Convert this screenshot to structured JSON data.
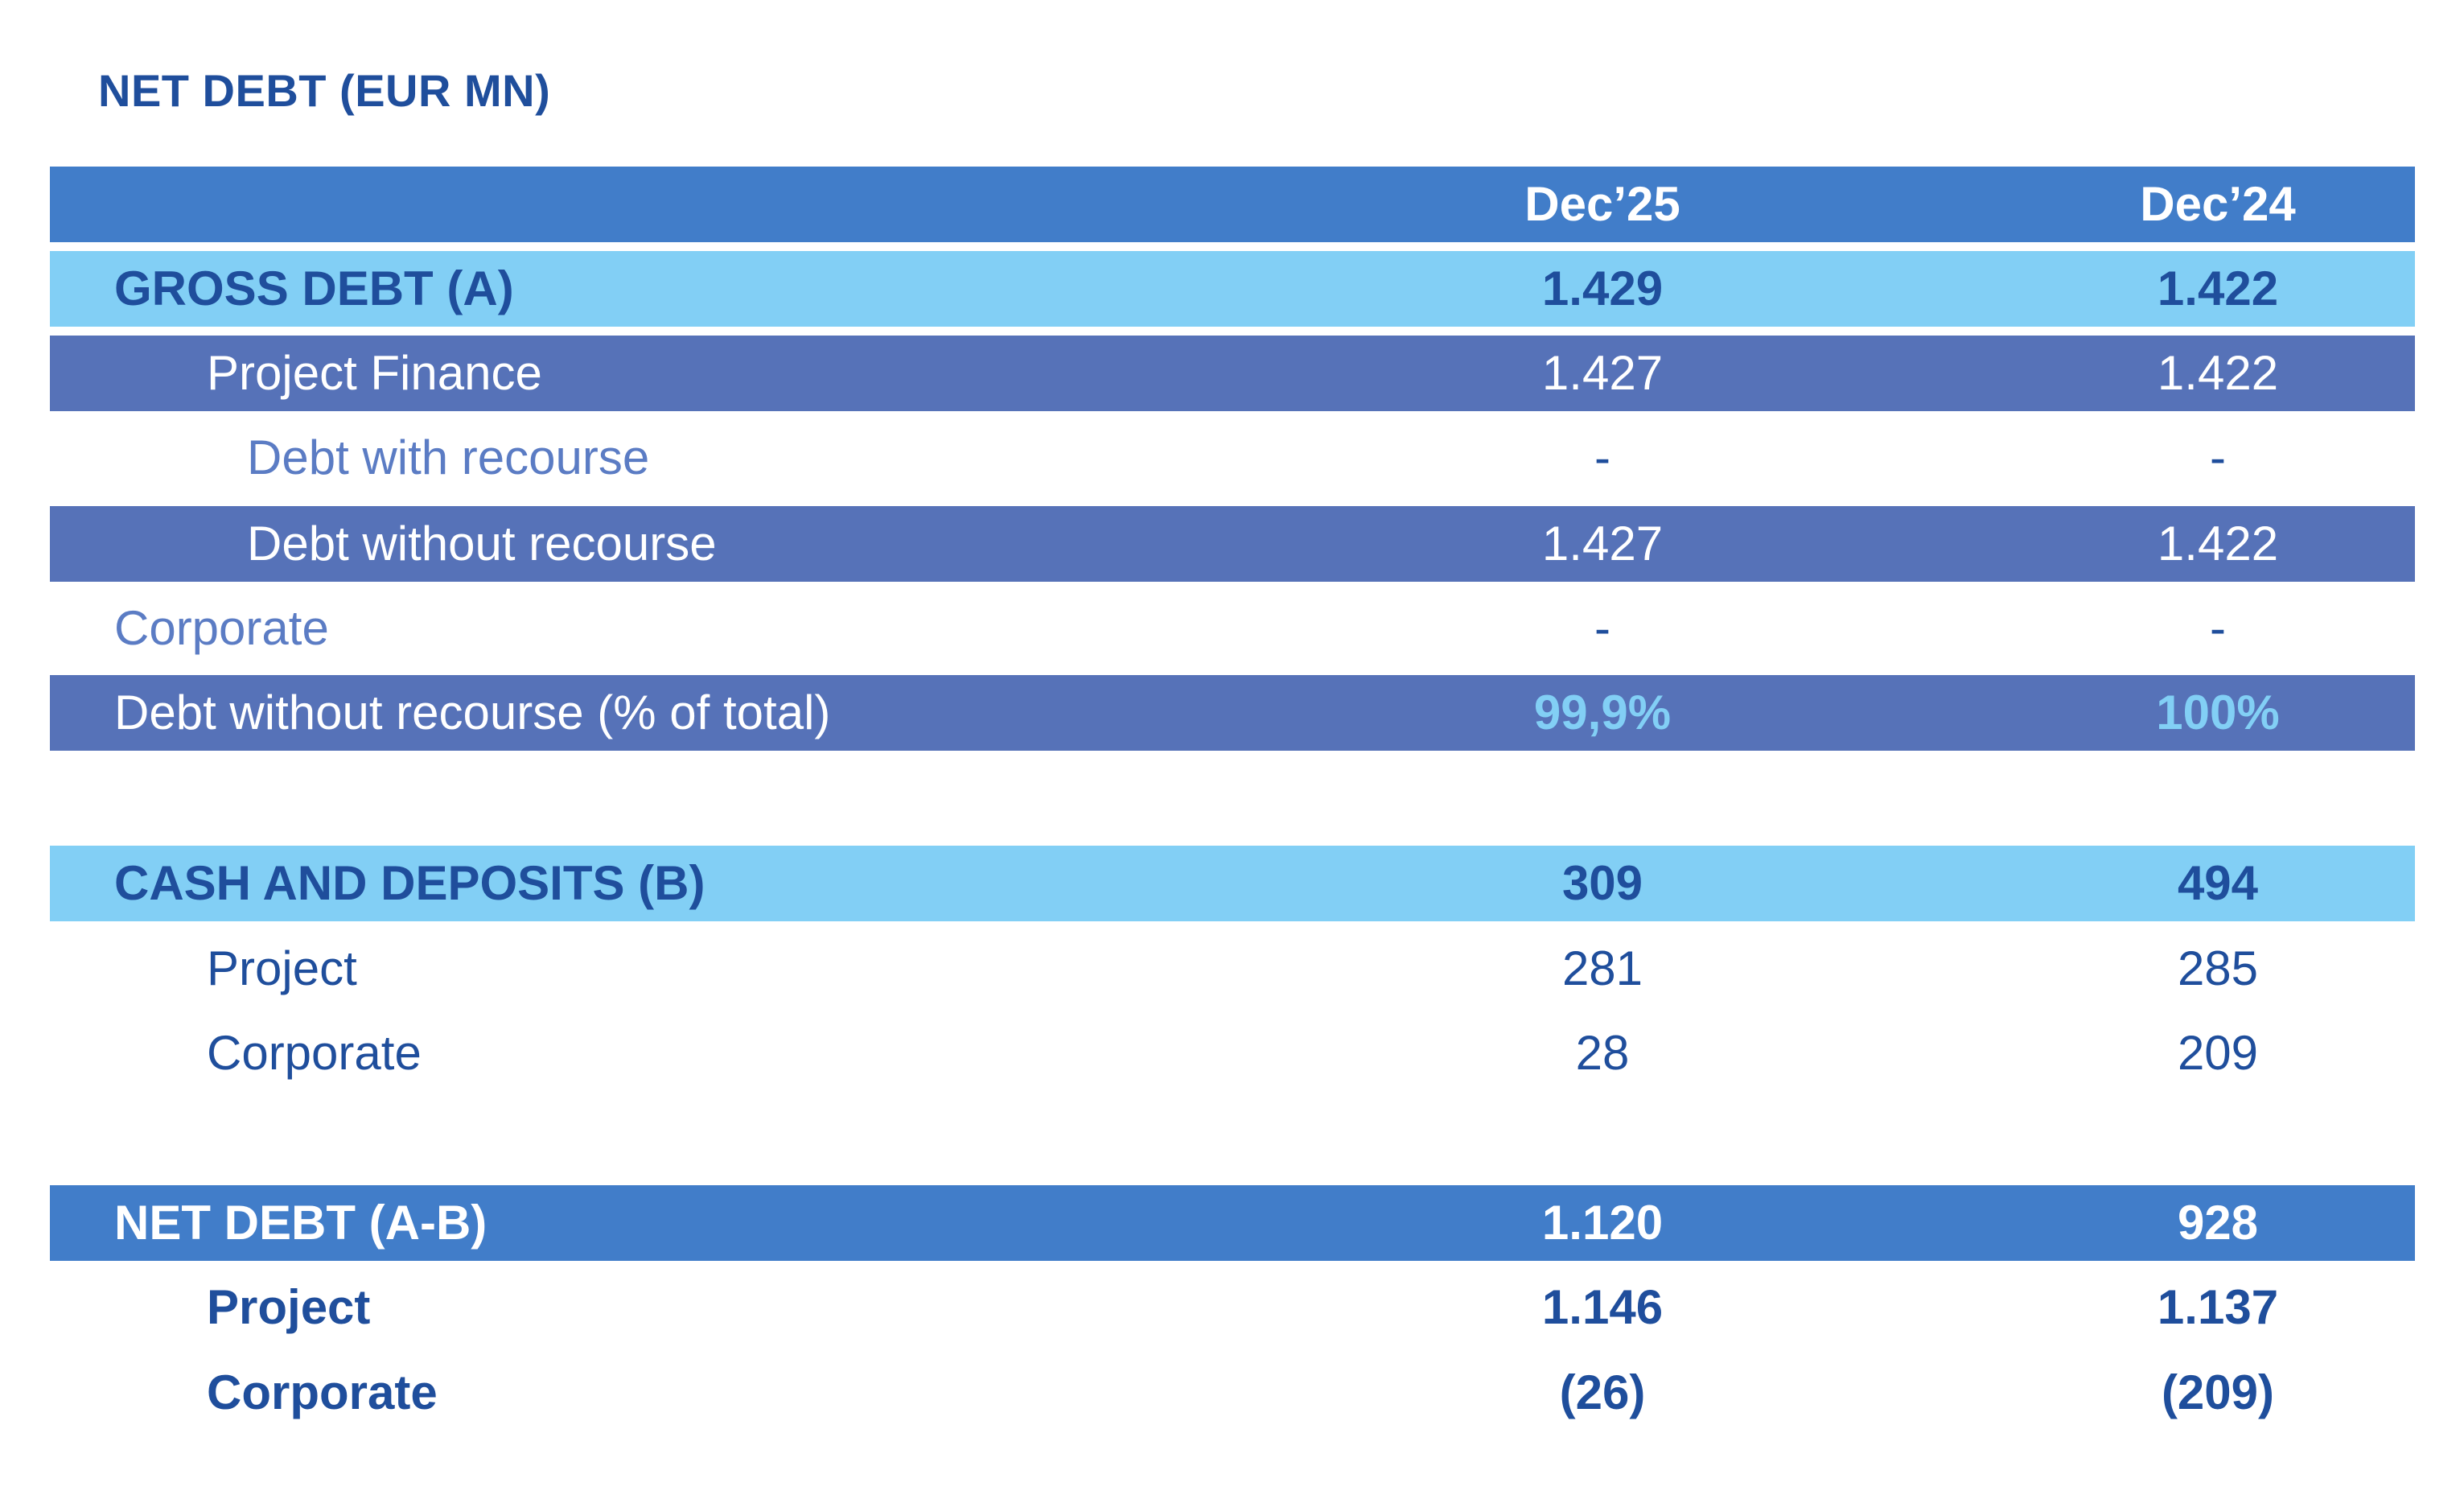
{
  "title": "NET DEBT (EUR MN)",
  "columns": [
    "Dec’25",
    "Dec’24"
  ],
  "rows": {
    "gross_debt": {
      "label": "GROSS DEBT (A)",
      "v1": "1.429",
      "v2": "1.422"
    },
    "project_finance": {
      "label": "Project Finance",
      "v1": "1.427",
      "v2": "1.422"
    },
    "debt_with_recourse": {
      "label": "Debt with recourse",
      "v1": "-",
      "v2": "-"
    },
    "debt_without_recourse": {
      "label": "Debt without recourse",
      "v1": "1.427",
      "v2": "1.422"
    },
    "corporate_debt": {
      "label": "Corporate",
      "v1": "-",
      "v2": "-"
    },
    "debt_without_recourse_pct": {
      "label": "Debt without recourse (% of total)",
      "v1": "99,9%",
      "v2": "100%"
    },
    "cash_deposits": {
      "label": "CASH AND DEPOSITS (B)",
      "v1": "309",
      "v2": "494"
    },
    "cash_project": {
      "label": "Project",
      "v1": "281",
      "v2": "285"
    },
    "cash_corporate": {
      "label": "Corporate",
      "v1": "28",
      "v2": "209"
    },
    "net_debt": {
      "label": "NET DEBT (A-B)",
      "v1": "1.120",
      "v2": "928"
    },
    "net_project": {
      "label": "Project",
      "v1": "1.146",
      "v2": "1.137"
    },
    "net_corporate": {
      "label": "Corporate",
      "v1": "(26)",
      "v2": "(209)"
    }
  },
  "colors": {
    "header_blue": "#417dc9",
    "light_blue": "#82cff5",
    "mid_blue": "#5672b8",
    "dark_text": "#1f4e9c",
    "soft_text": "#5b7cc4"
  }
}
